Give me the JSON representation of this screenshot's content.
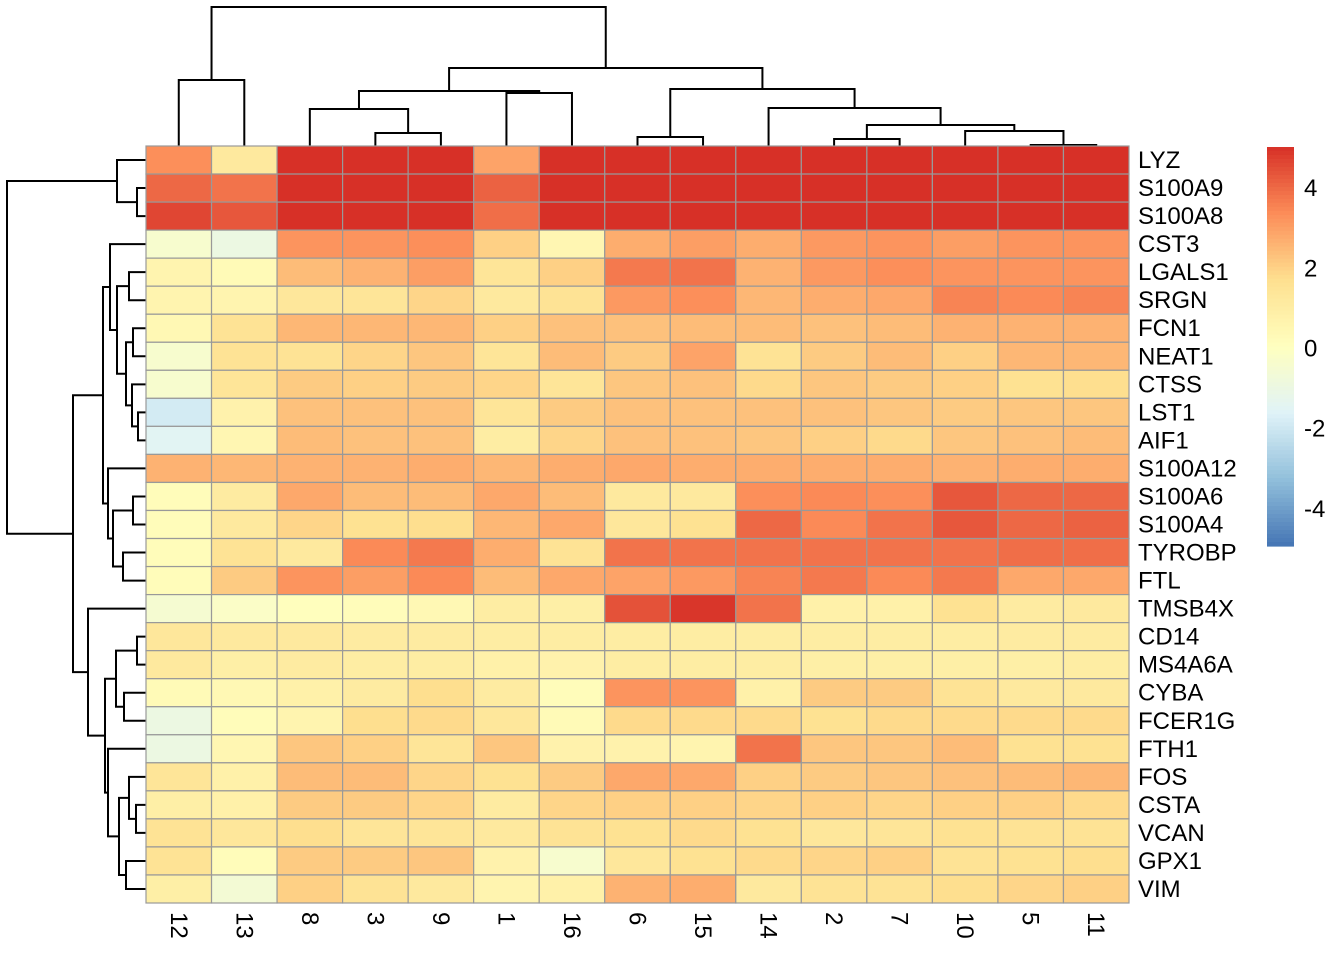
{
  "chart_data": {
    "type": "heatmap",
    "title": "",
    "columns": [
      "12",
      "13",
      "8",
      "3",
      "9",
      "1",
      "16",
      "6",
      "15",
      "14",
      "2",
      "7",
      "10",
      "5",
      "11"
    ],
    "rows": [
      "LYZ",
      "S100A9",
      "S100A8",
      "CST3",
      "LGALS1",
      "SRGN",
      "FCN1",
      "NEAT1",
      "CTSS",
      "LST1",
      "AIF1",
      "S100A12",
      "S100A6",
      "S100A4",
      "TYROBP",
      "FTL",
      "TMSB4X",
      "CD14",
      "MS4A6A",
      "CYBA",
      "FCER1G",
      "FTH1",
      "FOS",
      "CSTA",
      "VCAN",
      "GPX1",
      "VIM"
    ],
    "values": [
      [
        3.3,
        1.2,
        5,
        5,
        5,
        2.9,
        5,
        5,
        5,
        5,
        5,
        5,
        5,
        5,
        5
      ],
      [
        4.0,
        3.8,
        5,
        5,
        5,
        4.1,
        5,
        5,
        5,
        5,
        5,
        5,
        5,
        5,
        5
      ],
      [
        4.6,
        4.3,
        5,
        5,
        5,
        3.9,
        5,
        5,
        5,
        5,
        5,
        5,
        5,
        5,
        5
      ],
      [
        -0.4,
        -1.0,
        3.2,
        3.2,
        3.3,
        2.0,
        0.5,
        2.7,
        3.0,
        2.7,
        3.1,
        3.2,
        3.0,
        3.2,
        3.2
      ],
      [
        0.6,
        0.3,
        2.4,
        2.6,
        3.0,
        1.4,
        2.0,
        3.7,
        3.8,
        2.6,
        3.1,
        3.3,
        3.2,
        3.2,
        3.2
      ],
      [
        0.6,
        0.6,
        1.3,
        1.4,
        1.9,
        1.2,
        1.5,
        3.1,
        3.3,
        2.5,
        2.7,
        2.8,
        3.5,
        3.4,
        3.5
      ],
      [
        0.4,
        1.5,
        2.5,
        2.5,
        2.5,
        2.0,
        2.3,
        2.3,
        2.4,
        2.4,
        2.3,
        2.4,
        2.6,
        2.6,
        2.6
      ],
      [
        -0.4,
        1.5,
        1.5,
        1.9,
        2.2,
        1.4,
        2.4,
        2.1,
        2.9,
        1.5,
        2.1,
        2.4,
        2.0,
        2.5,
        2.5
      ],
      [
        -0.4,
        1.4,
        2.1,
        2.0,
        2.1,
        1.9,
        1.4,
        2.2,
        2.3,
        1.8,
        2.2,
        2.1,
        2.0,
        1.6,
        1.7
      ],
      [
        -1.9,
        0.7,
        2.3,
        2.3,
        2.3,
        1.4,
        2.1,
        2.3,
        2.3,
        2.3,
        2.3,
        2.2,
        2.1,
        2.2,
        2.2
      ],
      [
        -1.5,
        0.5,
        2.4,
        2.3,
        2.3,
        1.0,
        1.9,
        2.3,
        2.3,
        2.2,
        2.0,
        1.8,
        2.2,
        2.3,
        2.4
      ],
      [
        2.6,
        2.5,
        2.6,
        2.6,
        2.7,
        2.5,
        2.7,
        2.8,
        2.7,
        2.7,
        2.7,
        2.7,
        2.6,
        2.7,
        2.7
      ],
      [
        0.2,
        1.1,
        2.8,
        2.4,
        2.4,
        2.8,
        2.4,
        1.2,
        1.2,
        3.3,
        3.4,
        3.3,
        4.3,
        4.0,
        4.0
      ],
      [
        0.2,
        1.2,
        1.9,
        1.6,
        1.7,
        2.5,
        2.8,
        1.3,
        1.6,
        4.0,
        3.4,
        3.8,
        4.3,
        4.0,
        4.1
      ],
      [
        0.2,
        1.5,
        1.2,
        3.4,
        3.7,
        2.7,
        1.5,
        3.8,
        3.8,
        3.8,
        3.8,
        3.8,
        3.8,
        3.9,
        3.9
      ],
      [
        0.2,
        2.1,
        3.2,
        3.0,
        3.4,
        2.4,
        2.8,
        2.9,
        3.1,
        3.5,
        3.7,
        3.4,
        3.7,
        2.8,
        2.8
      ],
      [
        -0.5,
        -0.2,
        0.1,
        0.2,
        0.4,
        1.0,
        0.9,
        4.4,
        4.9,
        3.8,
        0.8,
        0.8,
        1.6,
        1.1,
        1.2
      ],
      [
        1.3,
        1.2,
        1.2,
        1.1,
        1.1,
        1.0,
        1.0,
        1.0,
        1.0,
        1.0,
        1.0,
        1.0,
        1.0,
        1.1,
        1.1
      ],
      [
        1.2,
        0.9,
        1.1,
        1.0,
        1.0,
        0.8,
        0.7,
        1.0,
        1.0,
        1.0,
        0.9,
        0.9,
        0.9,
        0.9,
        1.0
      ],
      [
        0.3,
        0.4,
        0.8,
        1.1,
        1.7,
        1.1,
        0.2,
        3.2,
        3.2,
        0.8,
        2.1,
        2.1,
        1.5,
        1.2,
        1.2
      ],
      [
        -1.0,
        0.2,
        0.6,
        1.7,
        1.8,
        1.3,
        0.3,
        1.8,
        1.8,
        1.8,
        1.6,
        1.8,
        1.8,
        1.8,
        1.8
      ],
      [
        -1.0,
        0.5,
        2.2,
        2.0,
        1.4,
        2.2,
        0.7,
        0.7,
        0.6,
        3.8,
        2.2,
        2.2,
        2.4,
        1.6,
        1.6
      ],
      [
        1.4,
        0.8,
        2.4,
        2.4,
        1.9,
        1.6,
        2.1,
        2.8,
        2.8,
        2.0,
        2.1,
        2.2,
        2.3,
        2.4,
        2.5
      ],
      [
        0.9,
        0.8,
        2.1,
        2.1,
        1.9,
        1.1,
        1.9,
        2.0,
        2.0,
        1.9,
        2.0,
        1.9,
        2.0,
        2.0,
        1.8
      ],
      [
        1.5,
        1.3,
        1.7,
        1.4,
        1.4,
        1.2,
        1.5,
        1.6,
        1.8,
        1.6,
        1.3,
        1.4,
        1.6,
        1.5,
        1.5
      ],
      [
        1.5,
        0.2,
        2.1,
        2.1,
        2.2,
        0.7,
        -0.4,
        1.3,
        1.6,
        1.8,
        1.9,
        2.0,
        1.5,
        1.6,
        1.7
      ],
      [
        0.9,
        -0.6,
        2.0,
        1.5,
        1.2,
        0.6,
        0.8,
        2.6,
        2.7,
        1.2,
        1.5,
        1.5,
        1.7,
        1.9,
        2.0
      ]
    ],
    "color_range": [
      -4.95,
      5.0
    ],
    "palette": [
      "#4575B4",
      "#91BFDB",
      "#E0F3F8",
      "#FFFFBF",
      "#FEE090",
      "#FC8D59",
      "#D73027"
    ],
    "colorbar_ticks": [
      "4",
      "2",
      "0",
      "-2",
      "-4"
    ],
    "colorbar_tick_values": [
      4,
      2,
      0,
      -2,
      -4
    ],
    "cell_border_color": "#999999",
    "row_dendrogram": true,
    "column_dendrogram": true,
    "legend_position": "right"
  }
}
